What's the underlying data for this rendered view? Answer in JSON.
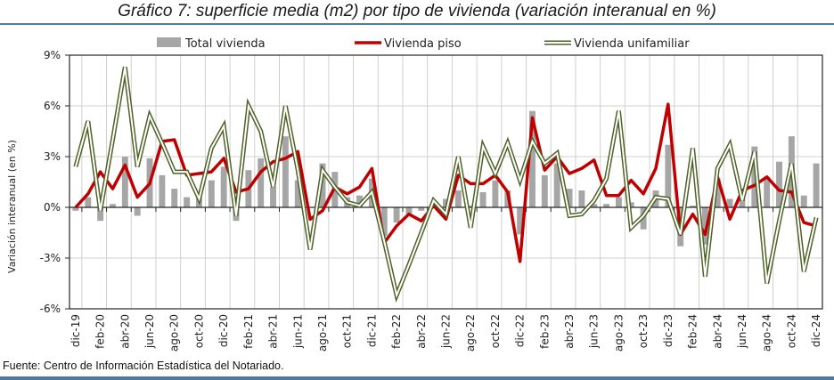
{
  "chart_data": {
    "type": "bar+line",
    "title": "Gráfico 7: superficie media (m2) por tipo de vivienda (variación interanual en %)",
    "ylabel": "Variación interanual (en %)",
    "xlabel": "",
    "ylim": [
      -6,
      9
    ],
    "yticks": [
      -6,
      -3,
      0,
      3,
      6,
      9
    ],
    "ytick_labels": [
      "-6%",
      "-3%",
      "0%",
      "3%",
      "6%",
      "9%"
    ],
    "grid": true,
    "legend_position": "top",
    "categories": [
      "dic-19",
      "ene-20",
      "feb-20",
      "mar-20",
      "abr-20",
      "may-20",
      "jun-20",
      "jul-20",
      "ago-20",
      "sep-20",
      "oct-20",
      "nov-20",
      "dic-20",
      "ene-21",
      "feb-21",
      "mar-21",
      "abr-21",
      "may-21",
      "jun-21",
      "jul-21",
      "ago-21",
      "sep-21",
      "oct-21",
      "nov-21",
      "dic-21",
      "ene-22",
      "feb-22",
      "mar-22",
      "abr-22",
      "may-22",
      "jun-22",
      "jul-22",
      "ago-22",
      "sep-22",
      "oct-22",
      "nov-22",
      "dic-22",
      "ene-23",
      "feb-23",
      "mar-23",
      "abr-23",
      "may-23",
      "jun-23",
      "jul-23",
      "ago-23",
      "sep-23",
      "oct-23",
      "nov-23",
      "dic-23",
      "ene-24",
      "feb-24",
      "mar-24",
      "abr-24",
      "may-24",
      "jun-24",
      "jul-24",
      "ago-24",
      "sep-24",
      "oct-24",
      "nov-24",
      "dic-24"
    ],
    "xtick_labels": [
      "dic-19",
      "feb-20",
      "abr-20",
      "jun-20",
      "ago-20",
      "oct-20",
      "dic-20",
      "feb-21",
      "abr-21",
      "jun-21",
      "ago-21",
      "oct-21",
      "dic-21",
      "feb-22",
      "abr-22",
      "jun-22",
      "ago-22",
      "oct-22",
      "dic-22",
      "feb-23",
      "abr-23",
      "jun-23",
      "ago-23",
      "oct-23",
      "dic-23",
      "feb-24",
      "abr-24",
      "jun-24",
      "ago-24",
      "oct-24",
      "dic-24"
    ],
    "series": [
      {
        "name": "Total vivienda",
        "kind": "bar",
        "color": "#a6a6a6",
        "values": [
          -0.2,
          0.6,
          -0.8,
          0.2,
          3.0,
          -0.5,
          2.9,
          1.9,
          1.1,
          0.6,
          0.6,
          1.6,
          2.4,
          -0.8,
          2.2,
          2.9,
          1.2,
          4.2,
          1.6,
          0.0,
          2.6,
          2.1,
          0.6,
          0.7,
          1.7,
          -1.7,
          -0.9,
          -0.4,
          -0.2,
          0.0,
          0.5,
          1.0,
          0.1,
          0.9,
          1.6,
          1.0,
          -1.6,
          5.7,
          1.9,
          2.6,
          1.1,
          1.0,
          0.2,
          0.2,
          0.6,
          0.3,
          -1.3,
          1.0,
          3.7,
          -2.3,
          0.1,
          -2.2,
          1.7,
          0.5,
          0.5,
          3.6,
          1.8,
          2.7,
          4.2,
          0.7,
          2.6
        ]
      },
      {
        "name": "Vivienda piso",
        "kind": "line",
        "color": "#c00000",
        "values": [
          0.0,
          0.8,
          2.1,
          1.1,
          2.5,
          0.6,
          1.4,
          3.9,
          4.0,
          1.9,
          2.0,
          2.1,
          2.9,
          0.9,
          1.1,
          2.1,
          2.7,
          2.9,
          3.3,
          -0.7,
          -0.2,
          1.2,
          0.8,
          1.2,
          2.3,
          -2.1,
          -1.1,
          -0.4,
          -0.8,
          0.1,
          -0.7,
          1.9,
          1.4,
          1.4,
          1.9,
          0.9,
          -3.2,
          5.3,
          2.2,
          3.0,
          2.0,
          2.3,
          2.8,
          0.7,
          0.7,
          1.6,
          0.8,
          2.3,
          6.1,
          -1.6,
          -0.4,
          -1.6,
          1.8,
          -0.7,
          1.0,
          1.3,
          1.8,
          1.0,
          0.9,
          -0.9,
          -1.1
        ]
      },
      {
        "name": "Vivienda unifamiliar",
        "kind": "line",
        "color": "#4f6228",
        "values": [
          2.4,
          5.1,
          -0.2,
          4.0,
          8.3,
          2.4,
          5.4,
          3.8,
          2.1,
          2.1,
          0.5,
          3.5,
          4.8,
          -0.5,
          6.0,
          4.5,
          1.2,
          6.0,
          2.2,
          -2.5,
          2.2,
          1.2,
          0.3,
          0.1,
          0.9,
          -2.0,
          -5.2,
          -3.4,
          -1.5,
          0.4,
          -0.4,
          3.0,
          -1.2,
          3.6,
          2.0,
          3.8,
          1.6,
          3.9,
          2.6,
          3.2,
          -0.5,
          -0.4,
          0.4,
          1.7,
          5.7,
          -1.2,
          -0.5,
          0.6,
          0.5,
          -1.6,
          3.5,
          -4.1,
          2.3,
          3.7,
          0.4,
          3.3,
          -4.5,
          -0.8,
          2.6,
          -3.8,
          -0.6
        ]
      }
    ],
    "source": "Fuente: Centro de Información Estadística del Notariado."
  },
  "colors": {
    "rule": "#4f7ba3",
    "grid": "#d0d0d0",
    "axis": "#262626"
  }
}
